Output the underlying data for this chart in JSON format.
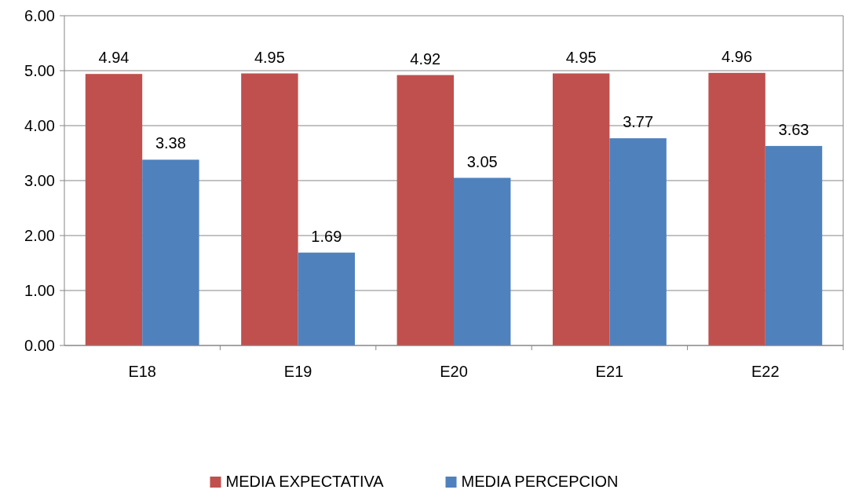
{
  "chart_data": {
    "type": "bar",
    "categories": [
      "E18",
      "E19",
      "E20",
      "E21",
      "E22"
    ],
    "series": [
      {
        "name": "MEDIA EXPECTATIVA",
        "color": "#c0504d",
        "values": [
          4.94,
          4.95,
          4.92,
          4.95,
          4.96
        ]
      },
      {
        "name": "MEDIA PERCEPCION",
        "color": "#4f81bd",
        "values": [
          3.38,
          1.69,
          3.05,
          3.77,
          3.63
        ]
      }
    ],
    "ylim": [
      0,
      6
    ],
    "yticks": [
      {
        "value": 0,
        "label": "0.00"
      },
      {
        "value": 1,
        "label": "1.00"
      },
      {
        "value": 2,
        "label": "2.00"
      },
      {
        "value": 3,
        "label": "3.00"
      },
      {
        "value": 4,
        "label": "4.00"
      },
      {
        "value": 5,
        "label": "5.00"
      },
      {
        "value": 6,
        "label": "6.00"
      }
    ],
    "grid": "y",
    "legend": "bottom",
    "data_labels": true
  }
}
